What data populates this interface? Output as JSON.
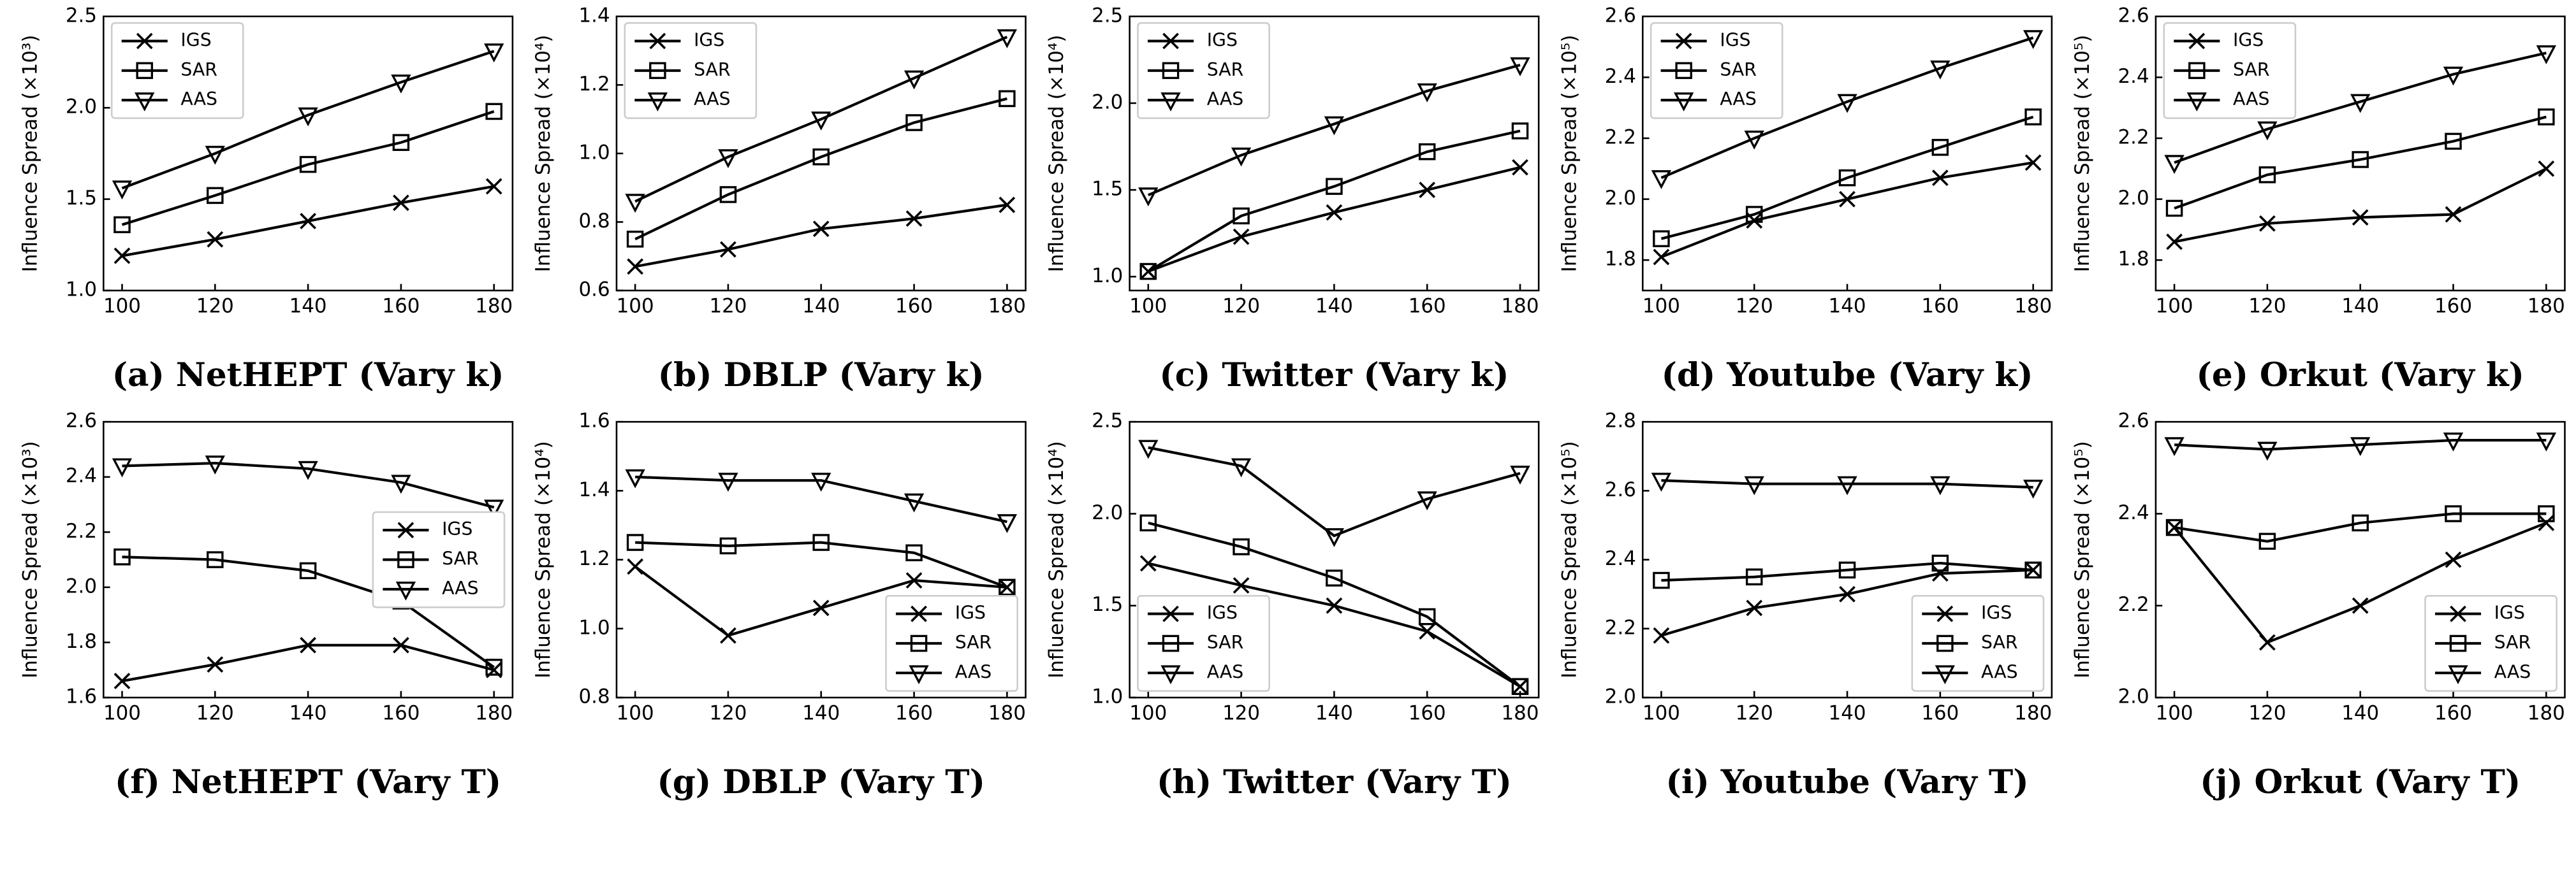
{
  "chart_data": [
    {
      "type": "line",
      "title": "(a) NetHEPT (Vary k)",
      "ylabel": "Influence Spread (×10³)",
      "x": [
        100,
        120,
        140,
        160,
        180
      ],
      "xlim": [
        96,
        184
      ],
      "xticks": [
        100,
        120,
        140,
        160,
        180
      ],
      "ylim": [
        1.0,
        2.5
      ],
      "yticks": [
        {
          "value": 1,
          "label": "1.0"
        },
        1.5,
        {
          "value": 2,
          "label": "2.0"
        },
        2.5
      ],
      "legend": "upper left",
      "series": [
        {
          "name": "IGS",
          "color": "#000000",
          "marker": "x",
          "values": [
            1.19,
            1.28,
            1.38,
            1.48,
            1.57
          ]
        },
        {
          "name": "SAR",
          "color": "#000000",
          "marker": "square",
          "values": [
            1.36,
            1.52,
            1.69,
            1.81,
            1.98
          ]
        },
        {
          "name": "AAS",
          "color": "#000000",
          "marker": "triangle-down",
          "values": [
            1.56,
            1.75,
            1.96,
            2.14,
            2.31
          ]
        }
      ]
    },
    {
      "type": "line",
      "title": "(b) DBLP (Vary k)",
      "ylabel": "Influence Spread (×10⁴)",
      "x": [
        100,
        120,
        140,
        160,
        180
      ],
      "xlim": [
        96,
        184
      ],
      "xticks": [
        100,
        120,
        140,
        160,
        180
      ],
      "ylim": [
        0.6,
        1.4
      ],
      "yticks": [
        0.6,
        0.8,
        {
          "value": 1,
          "label": "1.0"
        },
        1.2,
        1.4
      ],
      "legend": "upper left",
      "series": [
        {
          "name": "IGS",
          "color": "#000000",
          "marker": "x",
          "values": [
            0.67,
            0.72,
            0.78,
            0.81,
            0.85
          ]
        },
        {
          "name": "SAR",
          "color": "#000000",
          "marker": "square",
          "values": [
            0.75,
            0.88,
            0.99,
            1.09,
            1.16
          ]
        },
        {
          "name": "AAS",
          "color": "#000000",
          "marker": "triangle-down",
          "values": [
            0.86,
            0.99,
            1.1,
            1.22,
            1.34
          ]
        }
      ]
    },
    {
      "type": "line",
      "title": "(c) Twitter (Vary k)",
      "ylabel": "Influence Spread (×10⁴)",
      "x": [
        100,
        120,
        140,
        160,
        180
      ],
      "xlim": [
        96,
        184
      ],
      "xticks": [
        100,
        120,
        140,
        160,
        180
      ],
      "ylim": [
        0.92,
        2.5
      ],
      "yticks": [
        {
          "value": 1,
          "label": "1.0"
        },
        1.5,
        {
          "value": 2,
          "label": "2.0"
        },
        2.5
      ],
      "legend": "upper left",
      "series": [
        {
          "name": "IGS",
          "color": "#000000",
          "marker": "x",
          "values": [
            1.03,
            1.23,
            1.37,
            1.5,
            1.63
          ]
        },
        {
          "name": "SAR",
          "color": "#000000",
          "marker": "square",
          "values": [
            1.03,
            1.35,
            1.52,
            1.72,
            1.84
          ]
        },
        {
          "name": "AAS",
          "color": "#000000",
          "marker": "triangle-down",
          "values": [
            1.47,
            1.7,
            1.88,
            2.07,
            2.22
          ]
        }
      ]
    },
    {
      "type": "line",
      "title": "(d) Youtube (Vary k)",
      "ylabel": "Influence Spread (×10⁵)",
      "x": [
        100,
        120,
        140,
        160,
        180
      ],
      "xlim": [
        96,
        184
      ],
      "xticks": [
        100,
        120,
        140,
        160,
        180
      ],
      "ylim": [
        1.7,
        2.6
      ],
      "yticks": [
        1.8,
        {
          "value": 2,
          "label": "2.0"
        },
        2.2,
        2.4,
        2.6
      ],
      "legend": "upper left",
      "series": [
        {
          "name": "IGS",
          "color": "#000000",
          "marker": "x",
          "values": [
            1.81,
            1.93,
            2.0,
            2.07,
            2.12
          ]
        },
        {
          "name": "SAR",
          "color": "#000000",
          "marker": "square",
          "values": [
            1.87,
            1.95,
            2.07,
            2.17,
            2.27
          ]
        },
        {
          "name": "AAS",
          "color": "#000000",
          "marker": "triangle-down",
          "values": [
            2.07,
            2.2,
            2.32,
            2.43,
            2.53
          ]
        }
      ]
    },
    {
      "type": "line",
      "title": "(e) Orkut (Vary k)",
      "ylabel": "Influence Spread (×10⁵)",
      "x": [
        100,
        120,
        140,
        160,
        180
      ],
      "xlim": [
        96,
        184
      ],
      "xticks": [
        100,
        120,
        140,
        160,
        180
      ],
      "ylim": [
        1.7,
        2.6
      ],
      "yticks": [
        1.8,
        {
          "value": 2,
          "label": "2.0"
        },
        2.2,
        2.4,
        2.6
      ],
      "legend": "upper left",
      "series": [
        {
          "name": "IGS",
          "color": "#000000",
          "marker": "x",
          "values": [
            1.86,
            1.92,
            1.94,
            1.95,
            2.1
          ]
        },
        {
          "name": "SAR",
          "color": "#000000",
          "marker": "square",
          "values": [
            1.97,
            2.08,
            2.13,
            2.19,
            2.27
          ]
        },
        {
          "name": "AAS",
          "color": "#000000",
          "marker": "triangle-down",
          "values": [
            2.12,
            2.23,
            2.32,
            2.41,
            2.48
          ]
        }
      ]
    },
    {
      "type": "line",
      "title": "(f) NetHEPT (Vary T)",
      "ylabel": "Influence Spread (×10³)",
      "x": [
        100,
        120,
        140,
        160,
        180
      ],
      "xlim": [
        96,
        184
      ],
      "xticks": [
        100,
        120,
        140,
        160,
        180
      ],
      "ylim": [
        1.6,
        2.6
      ],
      "yticks": [
        1.6,
        1.8,
        {
          "value": 2,
          "label": "2.0"
        },
        2.2,
        2.4,
        2.6
      ],
      "legend": "center right",
      "series": [
        {
          "name": "IGS",
          "color": "#000000",
          "marker": "x",
          "values": [
            1.66,
            1.72,
            1.79,
            1.79,
            1.7
          ]
        },
        {
          "name": "SAR",
          "color": "#000000",
          "marker": "square",
          "values": [
            2.11,
            2.1,
            2.06,
            1.95,
            1.71
          ]
        },
        {
          "name": "AAS",
          "color": "#000000",
          "marker": "triangle-down",
          "values": [
            2.44,
            2.45,
            2.43,
            2.38,
            2.29
          ]
        }
      ]
    },
    {
      "type": "line",
      "title": "(g) DBLP (Vary T)",
      "ylabel": "Influence Spread (×10⁴)",
      "x": [
        100,
        120,
        140,
        160,
        180
      ],
      "xlim": [
        96,
        184
      ],
      "xticks": [
        100,
        120,
        140,
        160,
        180
      ],
      "ylim": [
        0.8,
        1.6
      ],
      "yticks": [
        0.8,
        {
          "value": 1,
          "label": "1.0"
        },
        1.2,
        1.4,
        1.6
      ],
      "legend": "lower right",
      "series": [
        {
          "name": "IGS",
          "color": "#000000",
          "marker": "x",
          "values": [
            1.18,
            0.98,
            1.06,
            1.14,
            1.12
          ]
        },
        {
          "name": "SAR",
          "color": "#000000",
          "marker": "square",
          "values": [
            1.25,
            1.24,
            1.25,
            1.22,
            1.12
          ]
        },
        {
          "name": "AAS",
          "color": "#000000",
          "marker": "triangle-down",
          "values": [
            1.44,
            1.43,
            1.43,
            1.37,
            1.31
          ]
        }
      ]
    },
    {
      "type": "line",
      "title": "(h) Twitter (Vary T)",
      "ylabel": "Influence Spread (×10⁴)",
      "x": [
        100,
        120,
        140,
        160,
        180
      ],
      "xlim": [
        96,
        184
      ],
      "xticks": [
        100,
        120,
        140,
        160,
        180
      ],
      "ylim": [
        1.0,
        2.5
      ],
      "yticks": [
        {
          "value": 1,
          "label": "1.0"
        },
        1.5,
        {
          "value": 2,
          "label": "2.0"
        },
        2.5
      ],
      "legend": "lower left",
      "series": [
        {
          "name": "IGS",
          "color": "#000000",
          "marker": "x",
          "values": [
            1.73,
            1.61,
            1.5,
            1.36,
            1.06
          ]
        },
        {
          "name": "SAR",
          "color": "#000000",
          "marker": "square",
          "values": [
            1.95,
            1.82,
            1.65,
            1.44,
            1.06
          ]
        },
        {
          "name": "AAS",
          "color": "#000000",
          "marker": "triangle-down",
          "values": [
            2.36,
            2.26,
            1.88,
            2.08,
            2.22
          ]
        }
      ]
    },
    {
      "type": "line",
      "title": "(i) Youtube (Vary T)",
      "ylabel": "Influence Spread (×10⁵)",
      "x": [
        100,
        120,
        140,
        160,
        180
      ],
      "xlim": [
        96,
        184
      ],
      "xticks": [
        100,
        120,
        140,
        160,
        180
      ],
      "ylim": [
        2.0,
        2.8
      ],
      "yticks": [
        {
          "value": 2,
          "label": "2.0"
        },
        2.2,
        2.4,
        2.6,
        2.8
      ],
      "legend": "lower right",
      "series": [
        {
          "name": "IGS",
          "color": "#000000",
          "marker": "x",
          "values": [
            2.18,
            2.26,
            2.3,
            2.36,
            2.37
          ]
        },
        {
          "name": "SAR",
          "color": "#000000",
          "marker": "square",
          "values": [
            2.34,
            2.35,
            2.37,
            2.39,
            2.37
          ]
        },
        {
          "name": "AAS",
          "color": "#000000",
          "marker": "triangle-down",
          "values": [
            2.63,
            2.62,
            2.62,
            2.62,
            2.61
          ]
        }
      ]
    },
    {
      "type": "line",
      "title": "(j) Orkut (Vary T)",
      "ylabel": "Influence Spread (×10⁵)",
      "x": [
        100,
        120,
        140,
        160,
        180
      ],
      "xlim": [
        96,
        184
      ],
      "xticks": [
        100,
        120,
        140,
        160,
        180
      ],
      "ylim": [
        2.0,
        2.6
      ],
      "yticks": [
        {
          "value": 2,
          "label": "2.0"
        },
        2.2,
        2.4,
        2.6
      ],
      "legend": "lower right",
      "series": [
        {
          "name": "IGS",
          "color": "#000000",
          "marker": "x",
          "values": [
            2.37,
            2.12,
            2.2,
            2.3,
            2.38
          ]
        },
        {
          "name": "SAR",
          "color": "#000000",
          "marker": "square",
          "values": [
            2.37,
            2.34,
            2.38,
            2.4,
            2.4
          ]
        },
        {
          "name": "AAS",
          "color": "#000000",
          "marker": "triangle-down",
          "values": [
            2.55,
            2.54,
            2.55,
            2.56,
            2.56
          ]
        }
      ]
    }
  ]
}
